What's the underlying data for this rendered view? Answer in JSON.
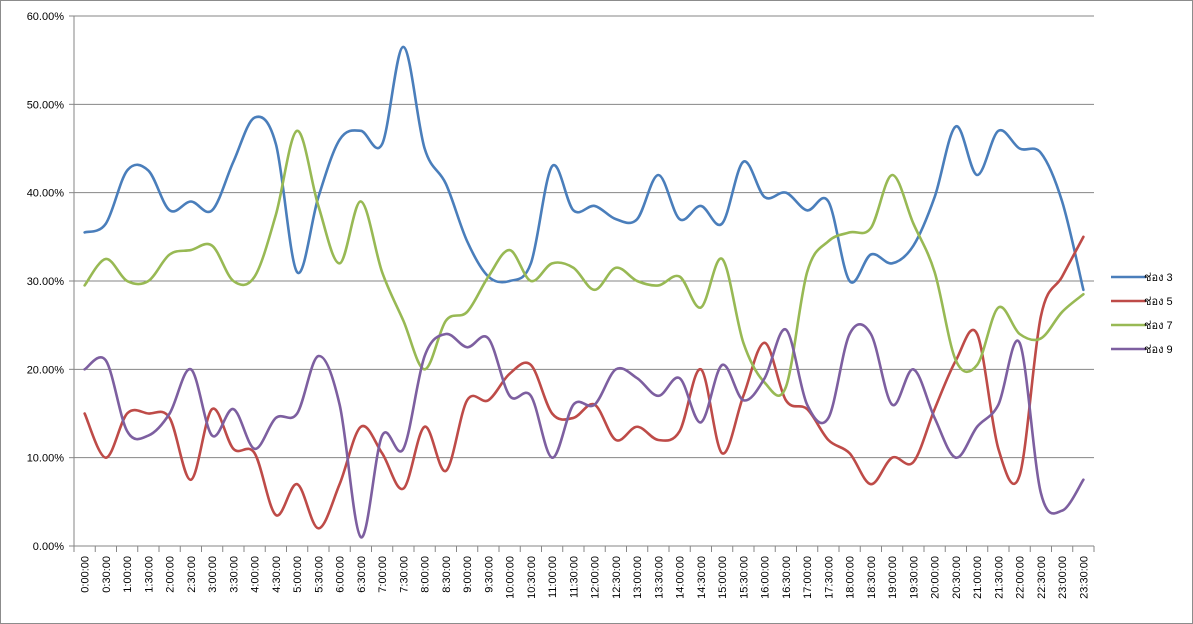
{
  "chart_data": {
    "type": "line",
    "title": "",
    "xlabel": "",
    "ylabel": "",
    "ylim": [
      0,
      60
    ],
    "y_tick_values": [
      0,
      10,
      20,
      30,
      40,
      50,
      60
    ],
    "y_tick_labels": [
      "0.00%",
      "10.00%",
      "20.00%",
      "30.00%",
      "40.00%",
      "50.00%",
      "60.00%"
    ],
    "grid": true,
    "legend_position": "right",
    "smooth": true,
    "categories": [
      "0:00:00",
      "0:30:00",
      "1:00:00",
      "1:30:00",
      "2:00:00",
      "2:30:00",
      "3:00:00",
      "3:30:00",
      "4:00:00",
      "4:30:00",
      "5:00:00",
      "5:30:00",
      "6:00:00",
      "6:30:00",
      "7:00:00",
      "7:30:00",
      "8:00:00",
      "8:30:00",
      "9:00:00",
      "9:30:00",
      "10:00:00",
      "10:30:00",
      "11:00:00",
      "11:30:00",
      "12:00:00",
      "12:30:00",
      "13:00:00",
      "13:30:00",
      "14:00:00",
      "14:30:00",
      "15:00:00",
      "15:30:00",
      "16:00:00",
      "16:30:00",
      "17:00:00",
      "17:30:00",
      "18:00:00",
      "18:30:00",
      "19:00:00",
      "19:30:00",
      "20:00:00",
      "20:30:00",
      "21:00:00",
      "21:30:00",
      "22:00:00",
      "22:30:00",
      "23:00:00",
      "23:30:00"
    ],
    "series": [
      {
        "name": "ช่อง 3",
        "color": "#4a7ebb",
        "values": [
          35.5,
          36.5,
          42.5,
          42.5,
          38,
          39,
          38,
          43.5,
          48.5,
          45.5,
          31,
          39.5,
          46,
          47,
          45.5,
          56.5,
          45,
          41,
          34.5,
          30.5,
          30,
          32,
          43,
          38,
          38.5,
          37,
          37,
          42,
          37,
          38.5,
          36.5,
          43.5,
          39.5,
          40,
          38,
          39,
          30,
          33,
          32,
          34,
          39.5,
          47.5,
          42,
          47,
          45,
          44.5,
          39,
          29
        ]
      },
      {
        "name": "ช่อง 5",
        "color": "#be4b48",
        "values": [
          15,
          10,
          15,
          15,
          14.5,
          7.5,
          15.5,
          11,
          10.5,
          3.5,
          7,
          2,
          7,
          13.5,
          10.5,
          6.5,
          13.5,
          8.5,
          16.5,
          16.5,
          19.5,
          20.5,
          15,
          14.5,
          16,
          12,
          13.5,
          12,
          13,
          20,
          10.5,
          17,
          23,
          16.5,
          15.5,
          12,
          10.5,
          7,
          10,
          9.5,
          15.5,
          21,
          24,
          11,
          8,
          26,
          30.5,
          35
        ]
      },
      {
        "name": "ช่อง 7",
        "color": "#98b954",
        "values": [
          29.5,
          32.5,
          30,
          30,
          33,
          33.5,
          34,
          30,
          30.5,
          37.5,
          47,
          38.5,
          32,
          39,
          31,
          25.5,
          20,
          25.5,
          26.5,
          30.5,
          33.5,
          30,
          32,
          31.5,
          29,
          31.5,
          30,
          29.5,
          30.5,
          27,
          32.5,
          23,
          18.5,
          18,
          31,
          34.5,
          35.5,
          36,
          42,
          36.5,
          31,
          21,
          20.5,
          27,
          24,
          23.5,
          26.5,
          28.5
        ]
      },
      {
        "name": "ช่อง 9",
        "color": "#7d5fa0",
        "values": [
          20,
          21,
          13,
          12.5,
          15,
          20,
          12.5,
          15.5,
          11,
          14.5,
          15,
          21.5,
          16,
          1,
          12.5,
          11,
          21.5,
          24,
          22.5,
          23.5,
          17,
          17,
          10,
          16,
          16,
          20,
          19,
          17,
          19,
          14,
          20.5,
          16.5,
          19,
          24.5,
          16,
          14.5,
          24,
          24,
          16,
          20,
          14.5,
          10,
          13.5,
          16,
          23,
          6,
          4,
          7.5
        ]
      }
    ]
  }
}
